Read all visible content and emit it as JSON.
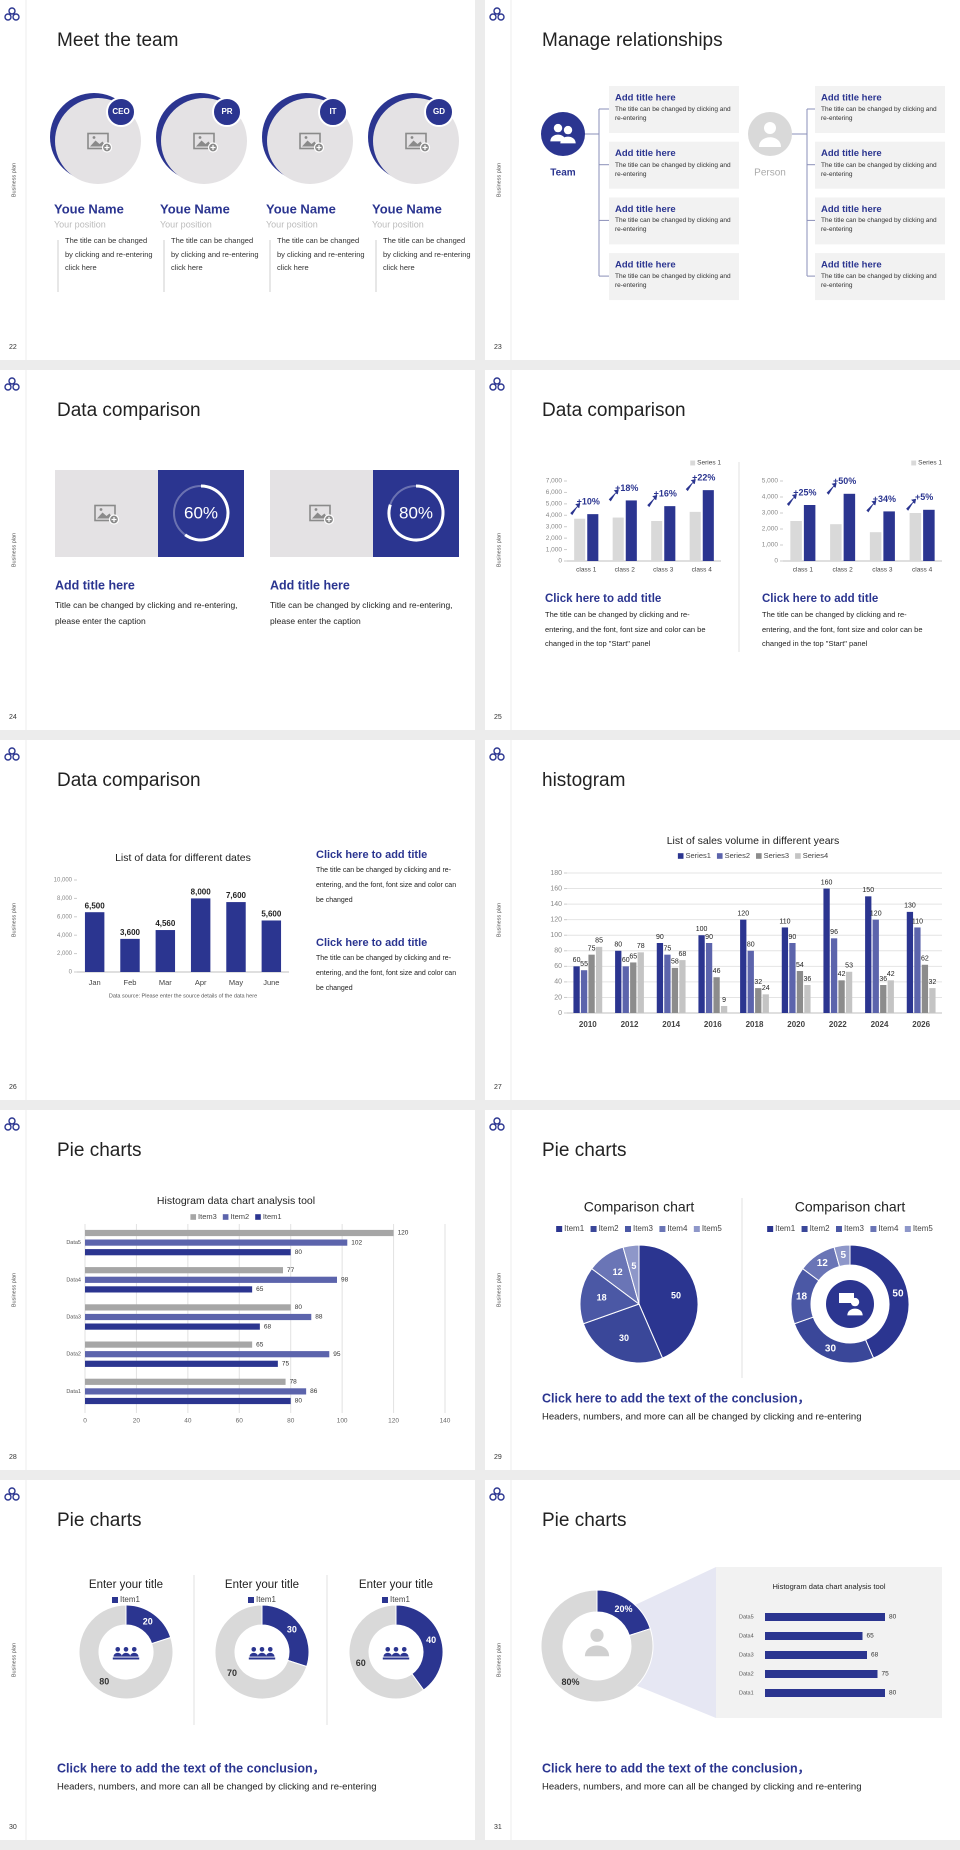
{
  "side_label": "Business plan",
  "slides": [
    {
      "number": 22,
      "title": "Meet the team",
      "members": [
        {
          "badge": "CEO",
          "name": "Youe Name",
          "position": "Your position",
          "text": "The title can be changed by clicking and re-entering click here"
        },
        {
          "badge": "PR",
          "name": "Youe Name",
          "position": "Your position",
          "text": "The title can be changed by clicking and re-entering click here"
        },
        {
          "badge": "IT",
          "name": "Youe Name",
          "position": "Your position",
          "text": "The title can be changed by clicking and re-entering click here"
        },
        {
          "badge": "GD",
          "name": "Youe Name",
          "position": "Your position",
          "text": "The title can be changed by clicking and re-entering click here"
        }
      ]
    },
    {
      "number": 23,
      "title": "Manage relationships",
      "hub": "Team",
      "person": "Person",
      "items": [
        {
          "title": "Add title here",
          "text": "The title can be changed by clicking and re-entering"
        },
        {
          "title": "Add title here",
          "text": "The title can be changed by clicking and re-entering"
        },
        {
          "title": "Add title here",
          "text": "The title can be changed by clicking and re-entering"
        },
        {
          "title": "Add title here",
          "text": "The title can be changed by clicking and re-entering"
        },
        {
          "title": "Add title here",
          "text": "The title can be changed by clicking and re-entering"
        },
        {
          "title": "Add title here",
          "text": "The title can be changed by clicking and re-entering"
        },
        {
          "title": "Add title here",
          "text": "The title can be changed by clicking and re-entering"
        },
        {
          "title": "Add title here",
          "text": "The title can be changed by clicking and re-entering"
        }
      ]
    },
    {
      "number": 24,
      "title": "Data comparison",
      "cards": [
        {
          "value": 60,
          "value_label": "60%",
          "heading": "Add title here",
          "text": "Title can be changed by clicking and re-entering, please enter the caption"
        },
        {
          "value": 80,
          "value_label": "80%",
          "heading": "Add title here",
          "text": "Title can be changed by clicking and re-entering, please enter the caption"
        }
      ]
    },
    {
      "number": 25,
      "title": "Data comparison",
      "panels": [
        {
          "chart_data": {
            "type": "bar",
            "categories": [
              "class 1",
              "class 2",
              "class 3",
              "class 4"
            ],
            "series": [
              {
                "name": "Series 1",
                "color": "#d9d9d9",
                "values": [
                  3700,
                  3800,
                  3500,
                  4300
                ]
              },
              {
                "color": "#2b3590",
                "values": [
                  4100,
                  5300,
                  4800,
                  6200
                ]
              }
            ],
            "annotations": [
              "+10%",
              "+18%",
              "+16%",
              "+22%"
            ],
            "ylim": [
              0,
              7000
            ],
            "yticks": [
              0,
              {
                "value": 1000,
                "label": "1,000"
              },
              {
                "value": 2000,
                "label": "2,000"
              },
              {
                "value": 3000,
                "label": "3,000"
              },
              {
                "value": 4000,
                "label": "4,000"
              },
              {
                "value": 5000,
                "label": "5,000"
              },
              {
                "value": 6000,
                "label": "6,000"
              },
              {
                "value": 7000,
                "label": "7,000"
              }
            ],
            "grid": false
          },
          "heading": "Click here to add title",
          "text": "The title can be changed by clicking and re-entering, and the font, font size and color can be changed in the top \"Start\" panel"
        },
        {
          "chart_data": {
            "type": "bar",
            "categories": [
              "class 1",
              "class 2",
              "class 3",
              "class 4"
            ],
            "series": [
              {
                "name": "Series 1",
                "color": "#d9d9d9",
                "values": [
                  2500,
                  2300,
                  1800,
                  3000
                ]
              },
              {
                "color": "#2b3590",
                "values": [
                  3500,
                  4200,
                  3100,
                  3200
                ]
              }
            ],
            "annotations": [
              "+25%",
              "+50%",
              "+34%",
              "+5%"
            ],
            "ylim": [
              0,
              5000
            ],
            "yticks": [
              0,
              {
                "value": 1000,
                "label": "1,000"
              },
              {
                "value": 2000,
                "label": "2,000"
              },
              {
                "value": 3000,
                "label": "3,000"
              },
              {
                "value": 4000,
                "label": "4,000"
              },
              {
                "value": 5000,
                "label": "5,000"
              }
            ],
            "grid": false
          },
          "heading": "Click here to add title",
          "text": "The title can be changed by clicking and re-entering, and the font, font size and color can be changed in the top \"Start\" panel"
        }
      ]
    },
    {
      "number": 26,
      "title": "Data comparison",
      "chart_data": {
        "type": "bar",
        "title": "List of data for different dates",
        "categories": [
          "Jan",
          "Feb",
          "Mar",
          "Apr",
          "May",
          "June"
        ],
        "values": [
          6500,
          3600,
          4560,
          8000,
          7600,
          5600
        ],
        "value_labels": [
          "6,500",
          "3,600",
          "4,560",
          "8,000",
          "7,600",
          "5,600"
        ],
        "color": "#2b3590",
        "ylim": [
          0,
          10000
        ],
        "yticks": [
          0,
          {
            "value": 2000,
            "label": "2,000"
          },
          {
            "value": 4000,
            "label": "4,000"
          },
          {
            "value": 6000,
            "label": "6,000"
          },
          {
            "value": 8000,
            "label": "8,000"
          },
          {
            "value": 10000,
            "label": "10,000"
          }
        ],
        "grid": false,
        "note": "Data source: Please enter the source details of the data here"
      },
      "blocks": [
        {
          "heading": "Click here to add title",
          "text": "The title can be changed by clicking and re-entering, and the font, font size and color can be changed"
        },
        {
          "heading": "Click here to add title",
          "text": "The title can be changed by clicking and re-entering, and the font, font size and color can be changed"
        }
      ]
    },
    {
      "number": 27,
      "title": "histogram",
      "chart_data": {
        "type": "bar",
        "title": "List of sales volume in different years",
        "categories": [
          "2010",
          "2012",
          "2014",
          "2016",
          "2018",
          "2020",
          "2022",
          "2024",
          "2026"
        ],
        "series": [
          {
            "name": "Series1",
            "color": "#2b3590",
            "values": [
              60,
              80,
              90,
              100,
              120,
              110,
              160,
              150,
              130
            ]
          },
          {
            "name": "Series2",
            "color": "#5c64ac",
            "values": [
              55,
              60,
              75,
              90,
              80,
              90,
              96,
              120,
              110
            ]
          },
          {
            "name": "Series3",
            "color": "#8c8c8c",
            "values": [
              75,
              65,
              58,
              46,
              32,
              54,
              42,
              36,
              62
            ]
          },
          {
            "name": "Series4",
            "color": "#c4c4c4",
            "values": [
              85,
              78,
              68,
              9,
              24,
              36,
              53,
              42,
              32
            ]
          }
        ],
        "ylim": [
          0,
          180
        ],
        "yticks": [
          0,
          20,
          40,
          60,
          80,
          100,
          120,
          140,
          160,
          180
        ],
        "grid": true
      }
    },
    {
      "number": 28,
      "title": "Pie charts",
      "chart_data": {
        "type": "hbar",
        "title": "Histogram data chart analysis tool",
        "categories": [
          "Data1",
          "Data2",
          "Data3",
          "Data4",
          "Data5"
        ],
        "series": [
          {
            "name": "Item3",
            "color": "#a6a6a6",
            "values": [
              78,
              65,
              80,
              77,
              120
            ]
          },
          {
            "name": "Item2",
            "color": "#5c64ac",
            "values": [
              86,
              95,
              88,
              98,
              102
            ]
          },
          {
            "name": "Item1",
            "color": "#2b3590",
            "values": [
              80,
              75,
              68,
              65,
              80
            ]
          }
        ],
        "xlim": [
          0,
          140
        ],
        "xticks": [
          0,
          20,
          40,
          60,
          80,
          100,
          120,
          140
        ],
        "grid": true
      }
    },
    {
      "number": 29,
      "title": "Pie charts",
      "charts": [
        {
          "chart_data": {
            "type": "pie",
            "title": "Comparison chart",
            "categories": [
              "Item1",
              "Item2",
              "Item3",
              "Item4",
              "Item5"
            ],
            "values": [
              50,
              30,
              18,
              12,
              5
            ],
            "colors": [
              "#2b3590",
              "#3a4799",
              "#4b58a5",
              "#6a75b6",
              "#8e97c9"
            ]
          }
        },
        {
          "chart_data": {
            "type": "donut",
            "title": "Comparison chart",
            "categories": [
              "Item1",
              "Item2",
              "Item3",
              "Item4",
              "Item5"
            ],
            "values": [
              50,
              30,
              18,
              12,
              5
            ],
            "colors": [
              "#2b3590",
              "#3a4799",
              "#4b58a5",
              "#6a75b6",
              "#8e97c9"
            ]
          }
        }
      ],
      "conclusion": {
        "heading": "Click here to add the text of the conclusion，",
        "text": "Headers, numbers, and more can all be changed by clicking and re-entering"
      }
    },
    {
      "number": 30,
      "title": "Pie charts",
      "charts": [
        {
          "chart_data": {
            "type": "donut",
            "title": "Enter your title",
            "categories": [
              "Item1",
              null
            ],
            "values": [
              20,
              80
            ],
            "colors": [
              "#2b3590",
              "#d9d9d9"
            ]
          }
        },
        {
          "chart_data": {
            "type": "donut",
            "title": "Enter your title",
            "categories": [
              "Item1",
              null
            ],
            "values": [
              30,
              70
            ],
            "colors": [
              "#2b3590",
              "#d9d9d9"
            ]
          }
        },
        {
          "chart_data": {
            "type": "donut",
            "title": "Enter your title",
            "categories": [
              "Item1",
              null
            ],
            "values": [
              40,
              60
            ],
            "colors": [
              "#2b3590",
              "#d9d9d9"
            ]
          }
        }
      ],
      "conclusion": {
        "heading": "Click here to add the text of the conclusion，",
        "text": "Headers, numbers, and more can all be changed by clicking and re-entering"
      }
    },
    {
      "number": 31,
      "title": "Pie charts",
      "charts": [
        {
          "chart_data": {
            "type": "donut",
            "values": [
              20,
              80
            ],
            "value_labels": [
              "20%",
              "80%"
            ],
            "colors": [
              "#2b3590",
              "#d9d9d9"
            ]
          }
        },
        {
          "chart_data": {
            "type": "hbar",
            "title": "Histogram data chart analysis tool",
            "categories": [
              "Data5",
              "Data4",
              "Data3",
              "Data2",
              "Data1"
            ],
            "values": [
              80,
              65,
              68,
              75,
              80
            ],
            "color": "#2b3590"
          }
        }
      ],
      "conclusion": {
        "heading": "Click here to add the text of the conclusion，",
        "text": "Headers, numbers, and more can all be changed by clicking and re-entering"
      }
    }
  ]
}
